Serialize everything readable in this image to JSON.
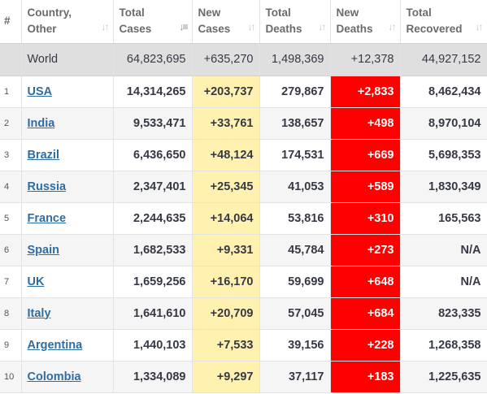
{
  "headers": {
    "rank": "#",
    "country": [
      "Country,",
      "Other"
    ],
    "total_cases": [
      "Total",
      "Cases"
    ],
    "new_cases": [
      "New",
      "Cases"
    ],
    "total_deaths": [
      "Total",
      "Deaths"
    ],
    "new_deaths": [
      "New",
      "Deaths"
    ],
    "total_recovered": [
      "Total",
      "Recovered"
    ]
  },
  "sort_icons": {
    "inactive": "sort-arrows-icon",
    "active": "sort-desc-icon"
  },
  "colors": {
    "new_cases_bg": "#fff2b0",
    "new_deaths_bg": "#ff0000",
    "link": "#2e6da4",
    "world_row_bg": "#dfdfdf"
  },
  "world": {
    "country": "World",
    "total_cases": "64,823,695",
    "new_cases": "+635,270",
    "total_deaths": "1,498,369",
    "new_deaths": "+12,378",
    "total_recovered": "44,927,152"
  },
  "rows": [
    {
      "rank": "1",
      "country": "USA",
      "total_cases": "14,314,265",
      "new_cases": "+203,737",
      "total_deaths": "279,867",
      "new_deaths": "+2,833",
      "total_recovered": "8,462,434"
    },
    {
      "rank": "2",
      "country": "India",
      "total_cases": "9,533,471",
      "new_cases": "+33,761",
      "total_deaths": "138,657",
      "new_deaths": "+498",
      "total_recovered": "8,970,104"
    },
    {
      "rank": "3",
      "country": "Brazil",
      "total_cases": "6,436,650",
      "new_cases": "+48,124",
      "total_deaths": "174,531",
      "new_deaths": "+669",
      "total_recovered": "5,698,353"
    },
    {
      "rank": "4",
      "country": "Russia",
      "total_cases": "2,347,401",
      "new_cases": "+25,345",
      "total_deaths": "41,053",
      "new_deaths": "+589",
      "total_recovered": "1,830,349"
    },
    {
      "rank": "5",
      "country": "France",
      "total_cases": "2,244,635",
      "new_cases": "+14,064",
      "total_deaths": "53,816",
      "new_deaths": "+310",
      "total_recovered": "165,563"
    },
    {
      "rank": "6",
      "country": "Spain",
      "total_cases": "1,682,533",
      "new_cases": "+9,331",
      "total_deaths": "45,784",
      "new_deaths": "+273",
      "total_recovered": "N/A"
    },
    {
      "rank": "7",
      "country": "UK",
      "total_cases": "1,659,256",
      "new_cases": "+16,170",
      "total_deaths": "59,699",
      "new_deaths": "+648",
      "total_recovered": "N/A"
    },
    {
      "rank": "8",
      "country": "Italy",
      "total_cases": "1,641,610",
      "new_cases": "+20,709",
      "total_deaths": "57,045",
      "new_deaths": "+684",
      "total_recovered": "823,335"
    },
    {
      "rank": "9",
      "country": "Argentina",
      "total_cases": "1,440,103",
      "new_cases": "+7,533",
      "total_deaths": "39,156",
      "new_deaths": "+228",
      "total_recovered": "1,268,358"
    },
    {
      "rank": "10",
      "country": "Colombia",
      "total_cases": "1,334,089",
      "new_cases": "+9,297",
      "total_deaths": "37,117",
      "new_deaths": "+183",
      "total_recovered": "1,225,635"
    }
  ]
}
